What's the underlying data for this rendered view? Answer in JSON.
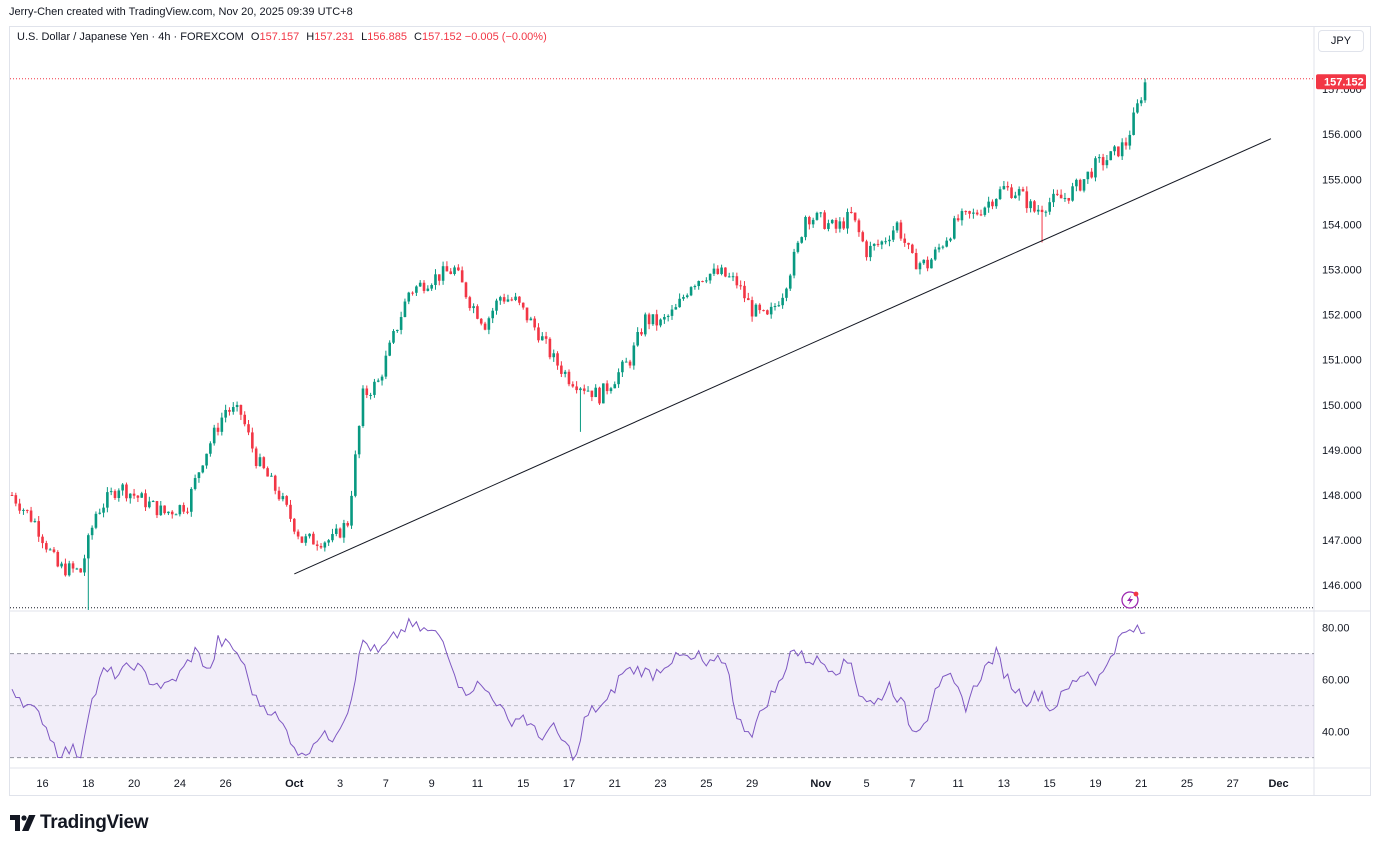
{
  "header": {
    "attribution": "Jerry-Chen created with TradingView.com, Nov 20, 2025 09:39 UTC+8"
  },
  "legend": {
    "symbol_text": "U.S. Dollar / Japanese Yen · 4h · FOREXCOM",
    "open_label": "O",
    "open": "157.157",
    "high_label": "H",
    "high": "157.231",
    "low_label": "L",
    "low": "156.885",
    "close_label": "C",
    "close": "157.152",
    "change": "−0.005 (−0.00%)"
  },
  "currency_button": "JPY",
  "colors": {
    "up": "#089981",
    "down": "#f23645",
    "rsi_line": "#7e57c2",
    "rsi_fill": "#7e57c21a",
    "trendline": "#131722",
    "price_label_bg": "#f23645"
  },
  "logo": {
    "icon": "tradingview-logo-icon",
    "text": "TradingView"
  },
  "chart_data": {
    "type": "candlestick",
    "title": "U.S. Dollar / Japanese Yen · 4h · FOREXCOM",
    "last_price_label": "157.152",
    "y_range": [
      145.45,
      158.0
    ],
    "y_ticks": [
      "146.000",
      "147.000",
      "148.000",
      "149.000",
      "150.000",
      "151.000",
      "152.000",
      "153.000",
      "154.000",
      "155.000",
      "156.000",
      "157.000"
    ],
    "x_labels": [
      {
        "label": "16",
        "bar": 8
      },
      {
        "label": "18",
        "bar": 20
      },
      {
        "label": "20",
        "bar": 32
      },
      {
        "label": "24",
        "bar": 44
      },
      {
        "label": "26",
        "bar": 56
      },
      {
        "label": "Oct",
        "bar": 74,
        "bold": true
      },
      {
        "label": "3",
        "bar": 86
      },
      {
        "label": "7",
        "bar": 98
      },
      {
        "label": "9",
        "bar": 110
      },
      {
        "label": "11",
        "bar": 122
      },
      {
        "label": "15",
        "bar": 134
      },
      {
        "label": "17",
        "bar": 146
      },
      {
        "label": "21",
        "bar": 158
      },
      {
        "label": "23",
        "bar": 170
      },
      {
        "label": "25",
        "bar": 182
      },
      {
        "label": "29",
        "bar": 194
      },
      {
        "label": "Nov",
        "bar": 212,
        "bold": true
      },
      {
        "label": "5",
        "bar": 224
      },
      {
        "label": "7",
        "bar": 236
      },
      {
        "label": "11",
        "bar": 248
      },
      {
        "label": "13",
        "bar": 260
      },
      {
        "label": "15",
        "bar": 272
      },
      {
        "label": "19",
        "bar": 284
      },
      {
        "label": "21",
        "bar": 296
      },
      {
        "label": "25",
        "bar": 308
      },
      {
        "label": "27",
        "bar": 320
      },
      {
        "label": "Dec",
        "bar": 332,
        "bold": true
      }
    ],
    "anchors": [
      [
        0,
        148.0
      ],
      [
        6,
        147.4
      ],
      [
        12,
        146.4
      ],
      [
        18,
        146.3
      ],
      [
        22,
        147.6
      ],
      [
        28,
        148.2
      ],
      [
        34,
        147.9
      ],
      [
        40,
        147.6
      ],
      [
        46,
        147.8
      ],
      [
        50,
        148.8
      ],
      [
        56,
        149.9
      ],
      [
        60,
        149.8
      ],
      [
        64,
        148.8
      ],
      [
        70,
        148.0
      ],
      [
        76,
        147.0
      ],
      [
        84,
        147.0
      ],
      [
        88,
        147.4
      ],
      [
        92,
        150.2
      ],
      [
        96,
        150.5
      ],
      [
        100,
        151.5
      ],
      [
        104,
        152.5
      ],
      [
        110,
        152.8
      ],
      [
        116,
        153.0
      ],
      [
        120,
        152.3
      ],
      [
        124,
        151.8
      ],
      [
        128,
        152.4
      ],
      [
        132,
        152.3
      ],
      [
        138,
        151.6
      ],
      [
        142,
        151.0
      ],
      [
        146,
        150.6
      ],
      [
        150,
        150.4
      ],
      [
        154,
        150.2
      ],
      [
        158,
        150.6
      ],
      [
        162,
        151.0
      ],
      [
        166,
        151.9
      ],
      [
        170,
        151.8
      ],
      [
        174,
        152.1
      ],
      [
        178,
        152.7
      ],
      [
        182,
        152.9
      ],
      [
        186,
        152.9
      ],
      [
        190,
        152.7
      ],
      [
        194,
        152.1
      ],
      [
        198,
        151.9
      ],
      [
        202,
        152.5
      ],
      [
        206,
        153.5
      ],
      [
        208,
        154.2
      ],
      [
        212,
        154.1
      ],
      [
        216,
        153.9
      ],
      [
        220,
        154.2
      ],
      [
        224,
        153.4
      ],
      [
        228,
        153.6
      ],
      [
        232,
        154.0
      ],
      [
        236,
        153.2
      ],
      [
        240,
        153.1
      ],
      [
        244,
        153.6
      ],
      [
        248,
        154.1
      ],
      [
        252,
        154.2
      ],
      [
        256,
        154.5
      ],
      [
        260,
        154.8
      ],
      [
        264,
        154.7
      ],
      [
        268,
        154.3
      ],
      [
        272,
        154.5
      ],
      [
        276,
        154.6
      ],
      [
        280,
        154.9
      ],
      [
        284,
        155.3
      ],
      [
        288,
        155.5
      ],
      [
        292,
        155.8
      ],
      [
        295,
        156.6
      ],
      [
        297,
        157.15
      ]
    ],
    "notable_wicks": [
      {
        "bar": 20,
        "low": 145.45
      },
      {
        "bar": 149,
        "low": 149.4
      },
      {
        "bar": 270,
        "low": 153.6
      }
    ],
    "trendline": {
      "from": {
        "bar": 74,
        "price": 146.25
      },
      "to": {
        "bar": 330,
        "price": 155.9
      }
    },
    "range_lines": {
      "high": 157.23,
      "low": 145.5
    },
    "rsi": {
      "y_range": [
        26,
        86
      ],
      "y_ticks": [
        "40.00",
        "60.00",
        "80.00"
      ],
      "levels": {
        "upper": 70,
        "middle": 50,
        "lower": 30
      },
      "last_value": 78,
      "anchors": [
        [
          0,
          57
        ],
        [
          4,
          50
        ],
        [
          8,
          45
        ],
        [
          12,
          32
        ],
        [
          16,
          33
        ],
        [
          18,
          31
        ],
        [
          20,
          48
        ],
        [
          24,
          63
        ],
        [
          28,
          62
        ],
        [
          32,
          66
        ],
        [
          36,
          60
        ],
        [
          40,
          57
        ],
        [
          44,
          62
        ],
        [
          48,
          71
        ],
        [
          52,
          63
        ],
        [
          54,
          75
        ],
        [
          58,
          72
        ],
        [
          60,
          68
        ],
        [
          64,
          52
        ],
        [
          68,
          48
        ],
        [
          72,
          40
        ],
        [
          76,
          30
        ],
        [
          80,
          38
        ],
        [
          84,
          38
        ],
        [
          88,
          48
        ],
        [
          92,
          75
        ],
        [
          96,
          70
        ],
        [
          100,
          76
        ],
        [
          104,
          81
        ],
        [
          108,
          79
        ],
        [
          112,
          77
        ],
        [
          114,
          72
        ],
        [
          118,
          55
        ],
        [
          122,
          58
        ],
        [
          126,
          54
        ],
        [
          130,
          44
        ],
        [
          134,
          46
        ],
        [
          138,
          38
        ],
        [
          142,
          41
        ],
        [
          146,
          33
        ],
        [
          148,
          30
        ],
        [
          150,
          44
        ],
        [
          152,
          48
        ],
        [
          156,
          51
        ],
        [
          160,
          63
        ],
        [
          164,
          64
        ],
        [
          168,
          62
        ],
        [
          172,
          67
        ],
        [
          176,
          69
        ],
        [
          178,
          67
        ],
        [
          180,
          69
        ],
        [
          182,
          65
        ],
        [
          184,
          66
        ],
        [
          186,
          68
        ],
        [
          188,
          63
        ],
        [
          190,
          44
        ],
        [
          194,
          40
        ],
        [
          198,
          52
        ],
        [
          202,
          60
        ],
        [
          204,
          72
        ],
        [
          208,
          68
        ],
        [
          212,
          67
        ],
        [
          216,
          64
        ],
        [
          220,
          67
        ],
        [
          222,
          55
        ],
        [
          226,
          50
        ],
        [
          230,
          58
        ],
        [
          234,
          49
        ],
        [
          236,
          40
        ],
        [
          240,
          46
        ],
        [
          242,
          58
        ],
        [
          246,
          60
        ],
        [
          250,
          50
        ],
        [
          254,
          62
        ],
        [
          258,
          70
        ],
        [
          260,
          63
        ],
        [
          262,
          58
        ],
        [
          266,
          52
        ],
        [
          270,
          55
        ],
        [
          272,
          48
        ],
        [
          276,
          55
        ],
        [
          280,
          62
        ],
        [
          282,
          63
        ],
        [
          284,
          60
        ],
        [
          286,
          62
        ],
        [
          288,
          70
        ],
        [
          291,
          77
        ],
        [
          294,
          79
        ],
        [
          297,
          78
        ]
      ]
    }
  }
}
